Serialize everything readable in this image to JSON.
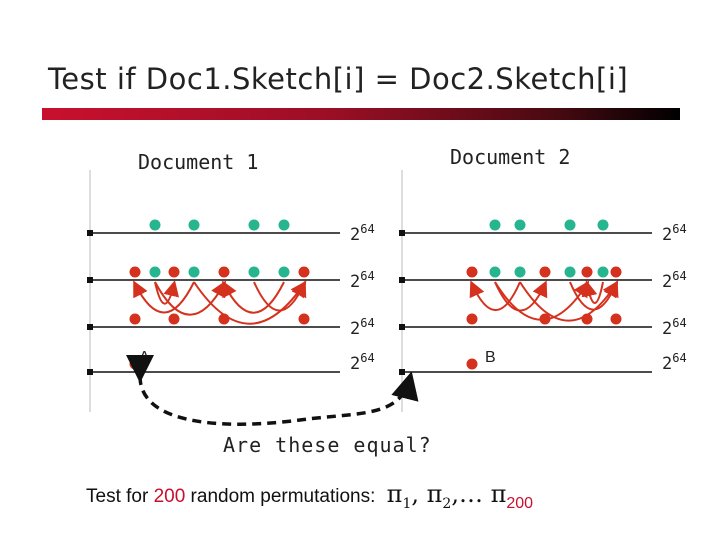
{
  "title": "Test if Doc1.Sketch[i] = Doc2.Sketch[i]",
  "doc1_label": "Document 1",
  "doc2_label": "Document 2",
  "range_base": "2",
  "range_exp": "64",
  "label_a": "A",
  "label_b": "B",
  "question": "Are these equal?",
  "footer": {
    "prefix": "Test for ",
    "count": "200",
    "suffix": " random permutations:",
    "pi_symbol": "π",
    "sub1": "1",
    "sub2": "2",
    "ellipsis": ",… ",
    "sub_last": "200",
    "sep": ", "
  },
  "colors": {
    "green": "#26b58f",
    "red": "#d4321e",
    "accent": "#c8102e"
  },
  "doc1_rows": [
    {
      "green": [
        155,
        194,
        254,
        284
      ],
      "red": []
    },
    {
      "green": [
        155,
        194,
        254,
        284
      ],
      "red": [
        135,
        174,
        224,
        304
      ]
    },
    {
      "green": [],
      "red": [
        135,
        174,
        224,
        304
      ]
    },
    {
      "green": [],
      "red": [
        135
      ]
    }
  ],
  "doc2_rows": [
    {
      "green": [
        495,
        520,
        570,
        603
      ],
      "red": []
    },
    {
      "green": [
        495,
        520,
        570,
        603
      ],
      "red": [
        472,
        545,
        587,
        616
      ]
    },
    {
      "green": [],
      "red": [
        472,
        545,
        587,
        616
      ]
    },
    {
      "green": [],
      "red": [
        472
      ]
    }
  ]
}
